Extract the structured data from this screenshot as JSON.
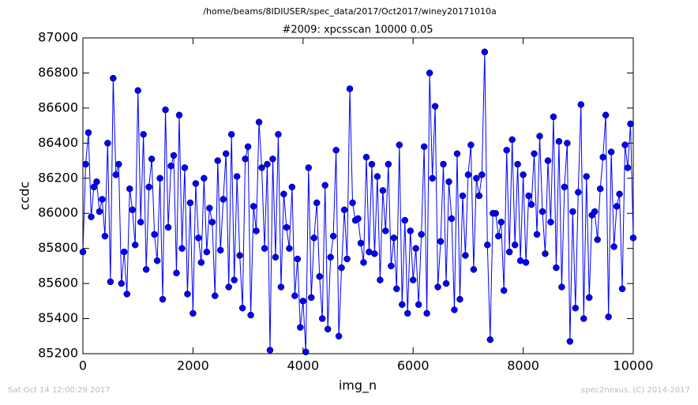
{
  "chart_data": {
    "type": "line",
    "suptitle": "/home/beams/8IDIUSER/spec_data/2017/Oct2017/winey20171010a",
    "title": "#2009: xpcsscan 10000 0.05",
    "x_label": "img_n",
    "y_label": "ccdc",
    "footer_left": "Sat Oct 14 12:00:29 2017",
    "footer_right": "spec2nexus, (C) 2014-2017",
    "xlim": [
      0,
      10000
    ],
    "xticks": [
      0,
      2000,
      4000,
      6000,
      8000,
      10000
    ],
    "ylim": [
      85200,
      87000
    ],
    "yticks": [
      85200,
      85400,
      85600,
      85800,
      86000,
      86200,
      86400,
      86600,
      86800,
      87000
    ],
    "grid": false,
    "x": [
      0,
      50,
      100,
      150,
      200,
      250,
      300,
      350,
      400,
      450,
      500,
      550,
      600,
      650,
      700,
      750,
      800,
      850,
      900,
      950,
      1000,
      1050,
      1100,
      1150,
      1200,
      1250,
      1300,
      1350,
      1400,
      1450,
      1500,
      1550,
      1600,
      1650,
      1700,
      1750,
      1800,
      1850,
      1900,
      1950,
      2000,
      2050,
      2100,
      2150,
      2200,
      2250,
      2300,
      2350,
      2400,
      2450,
      2500,
      2550,
      2600,
      2650,
      2700,
      2750,
      2800,
      2850,
      2900,
      2950,
      3000,
      3050,
      3100,
      3150,
      3200,
      3250,
      3300,
      3350,
      3400,
      3450,
      3500,
      3550,
      3600,
      3650,
      3700,
      3750,
      3800,
      3850,
      3900,
      3950,
      4000,
      4050,
      4100,
      4150,
      4200,
      4250,
      4300,
      4350,
      4400,
      4450,
      4500,
      4550,
      4600,
      4650,
      4700,
      4750,
      4800,
      4850,
      4900,
      4950,
      5000,
      5050,
      5100,
      5150,
      5200,
      5250,
      5300,
      5350,
      5400,
      5450,
      5500,
      5550,
      5600,
      5650,
      5700,
      5750,
      5800,
      5850,
      5900,
      5950,
      6000,
      6050,
      6100,
      6150,
      6200,
      6250,
      6300,
      6350,
      6400,
      6450,
      6500,
      6550,
      6600,
      6650,
      6700,
      6750,
      6800,
      6850,
      6900,
      6950,
      7000,
      7050,
      7100,
      7150,
      7200,
      7250,
      7300,
      7350,
      7400,
      7450,
      7500,
      7550,
      7600,
      7650,
      7700,
      7750,
      7800,
      7850,
      7900,
      7950,
      8000,
      8050,
      8100,
      8150,
      8200,
      8250,
      8300,
      8350,
      8400,
      8450,
      8500,
      8550,
      8600,
      8650,
      8700,
      8750,
      8800,
      8850,
      8900,
      8950,
      9000,
      9050,
      9100,
      9150,
      9200,
      9250,
      9300,
      9350,
      9400,
      9450,
      9500,
      9550,
      9600,
      9650,
      9700,
      9750,
      9800,
      9850,
      9900,
      9950,
      10000
    ],
    "series": [
      {
        "name": "ccdc",
        "color": "#0000ff",
        "values": [
          85780,
          86280,
          86460,
          85980,
          86150,
          86180,
          86010,
          86080,
          85870,
          86400,
          85610,
          86770,
          86220,
          86280,
          85600,
          85780,
          85540,
          86140,
          86020,
          85820,
          86700,
          85950,
          86450,
          85680,
          86150,
          86310,
          85880,
          85730,
          86200,
          85510,
          86590,
          85920,
          86270,
          86330,
          85660,
          86560,
          85800,
          86260,
          85540,
          86060,
          85430,
          86170,
          85860,
          85720,
          86200,
          85780,
          86030,
          85950,
          85530,
          86300,
          85790,
          86080,
          86340,
          85580,
          86450,
          85620,
          86210,
          85760,
          85460,
          86310,
          86380,
          85420,
          86040,
          85900,
          86520,
          86260,
          85800,
          86280,
          85220,
          86310,
          85750,
          86450,
          85580,
          86110,
          85920,
          85800,
          86150,
          85530,
          85740,
          85350,
          85500,
          85210,
          86260,
          85520,
          85860,
          86060,
          85640,
          85400,
          86160,
          85340,
          85750,
          85870,
          86360,
          85300,
          85690,
          86020,
          85740,
          86710,
          86060,
          85960,
          85970,
          85830,
          85720,
          86320,
          85780,
          86280,
          85770,
          86210,
          85620,
          86130,
          85900,
          86280,
          85700,
          85860,
          85570,
          86390,
          85480,
          85960,
          85430,
          85900,
          85620,
          85800,
          85480,
          85880,
          86380,
          85430,
          86800,
          86200,
          86610,
          85580,
          85840,
          86280,
          85600,
          86180,
          85970,
          85450,
          86340,
          85510,
          86100,
          85760,
          86220,
          86390,
          85680,
          86200,
          86100,
          86220,
          86920,
          85820,
          85280,
          86000,
          86000,
          85870,
          85950,
          85560,
          86360,
          85780,
          86420,
          85820,
          86280,
          85730,
          86220,
          85720,
          86100,
          86050,
          86340,
          85880,
          86440,
          86010,
          85770,
          86300,
          85950,
          86550,
          85690,
          86410,
          85580,
          86150,
          86400,
          85270,
          86010,
          85460,
          86120,
          86620,
          85400,
          86210,
          85520,
          85990,
          86010,
          85850,
          86140,
          86320,
          86560,
          85410,
          86350,
          85810,
          86040,
          86110,
          85570,
          86390,
          86260,
          86510,
          85860
        ]
      }
    ]
  }
}
